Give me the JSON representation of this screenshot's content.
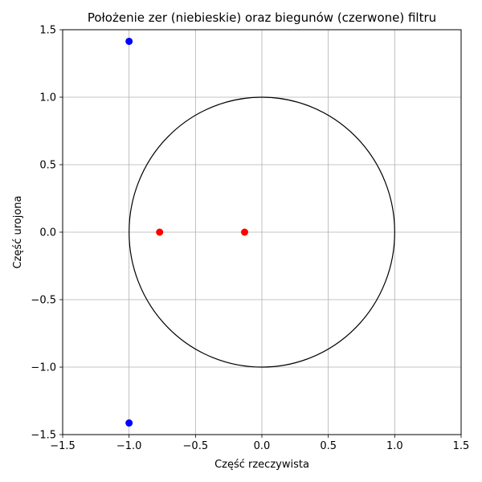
{
  "chart_data": {
    "type": "scatter",
    "title": "Położenie zer (niebieskie) oraz biegunów (czerwone) filtru",
    "xlabel": "Część rzeczywista",
    "ylabel": "Część urojona",
    "xlim": [
      -1.5,
      1.5
    ],
    "ylim": [
      -1.5,
      1.5
    ],
    "grid": true,
    "x_ticks": [
      "−1.5",
      "−1.0",
      "−0.5",
      "0.0",
      "0.5",
      "1.0",
      "1.5"
    ],
    "y_ticks": [
      "1.5",
      "1.0",
      "0.5",
      "0.0",
      "−0.5",
      "−1.0",
      "−1.5"
    ],
    "unit_circle": {
      "center": [
        0,
        0
      ],
      "radius": 1
    },
    "series": [
      {
        "role": "zeros",
        "color": "#0000ff",
        "points": [
          {
            "x": -1.0,
            "y": 1.414
          },
          {
            "x": -1.0,
            "y": -1.414
          }
        ]
      },
      {
        "role": "poles",
        "color": "#ff0000",
        "points": [
          {
            "x": -0.77,
            "y": 0.0
          },
          {
            "x": -0.13,
            "y": 0.0
          }
        ]
      }
    ]
  }
}
